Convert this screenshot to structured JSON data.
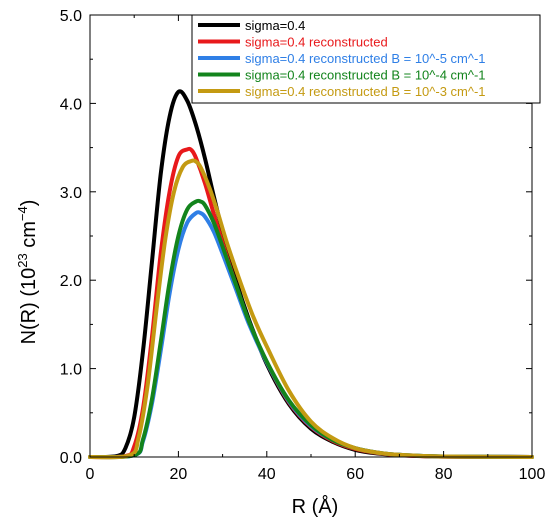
{
  "chart_data": {
    "type": "line",
    "xlabel": "R (Å)",
    "ylabel_main": "N(R) (10",
    "ylabel_exp1": "23",
    "ylabel_mid": " cm",
    "ylabel_exp2": "−4",
    "ylabel_end": ")",
    "xlim": [
      0,
      100
    ],
    "ylim": [
      0,
      5
    ],
    "x_ticks": [
      0,
      20,
      40,
      60,
      80,
      100
    ],
    "y_ticks": [
      0.0,
      1.0,
      2.0,
      3.0,
      4.0,
      5.0
    ],
    "x_tick_labels": [
      "0",
      "20",
      "40",
      "60",
      "80",
      "100"
    ],
    "y_tick_labels": [
      "0.0",
      "1.0",
      "2.0",
      "3.0",
      "4.0",
      "5.0"
    ],
    "grid": false,
    "legend_position": "top-right",
    "series": [
      {
        "name": "sigma=0.4",
        "color": "#000000",
        "x": [
          0,
          6,
          8,
          10,
          12,
          14,
          16,
          18,
          20,
          22,
          24,
          26,
          28,
          30,
          33,
          36,
          40,
          45,
          50,
          55,
          60,
          65,
          70,
          80,
          100
        ],
        "y": [
          0,
          0.01,
          0.1,
          0.45,
          1.2,
          2.2,
          3.2,
          3.85,
          4.13,
          4.03,
          3.75,
          3.38,
          2.95,
          2.55,
          2.0,
          1.55,
          1.05,
          0.6,
          0.32,
          0.17,
          0.08,
          0.04,
          0.02,
          0.005,
          0
        ]
      },
      {
        "name": "sigma=0.4 reconstructed",
        "color": "#e8191b",
        "x": [
          0,
          8,
          10,
          12,
          14,
          16,
          18,
          20,
          22,
          23,
          24,
          26,
          28,
          30,
          33,
          36,
          40,
          45,
          50,
          55,
          60,
          65,
          70,
          80,
          100
        ],
        "y": [
          0,
          0.01,
          0.12,
          0.55,
          1.35,
          2.3,
          3.0,
          3.4,
          3.48,
          3.47,
          3.38,
          3.1,
          2.75,
          2.42,
          1.95,
          1.52,
          1.07,
          0.62,
          0.34,
          0.18,
          0.09,
          0.045,
          0.02,
          0.005,
          0
        ]
      },
      {
        "name": "sigma=0.4 reconstructed B = 10^-5 cm^-1",
        "color": "#2f7fe6",
        "x": [
          0,
          10,
          12,
          14,
          16,
          18,
          20,
          22,
          24,
          25,
          26,
          28,
          30,
          33,
          36,
          40,
          45,
          50,
          55,
          60,
          65,
          70,
          80,
          100
        ],
        "y": [
          0,
          0.02,
          0.18,
          0.6,
          1.2,
          1.85,
          2.35,
          2.65,
          2.76,
          2.76,
          2.72,
          2.55,
          2.3,
          1.9,
          1.5,
          1.07,
          0.63,
          0.35,
          0.19,
          0.1,
          0.05,
          0.025,
          0.006,
          0
        ]
      },
      {
        "name": "sigma=0.4 reconstructed B = 10^-4 cm^-1",
        "color": "#13841c",
        "x": [
          0,
          10,
          12,
          14,
          16,
          18,
          20,
          22,
          24,
          25,
          26,
          28,
          30,
          33,
          36,
          40,
          45,
          50,
          55,
          60,
          65,
          70,
          80,
          100
        ],
        "y": [
          0,
          0.02,
          0.2,
          0.65,
          1.3,
          1.98,
          2.5,
          2.8,
          2.89,
          2.89,
          2.85,
          2.65,
          2.38,
          1.95,
          1.53,
          1.08,
          0.64,
          0.36,
          0.19,
          0.1,
          0.05,
          0.025,
          0.006,
          0
        ]
      },
      {
        "name": "sigma=0.4 reconstructed B = 10^-3 cm^-1",
        "color": "#c49a12",
        "x": [
          0,
          9,
          11,
          13,
          15,
          17,
          19,
          21,
          23,
          24,
          25,
          27,
          29,
          31,
          34,
          37,
          40,
          45,
          50,
          55,
          60,
          65,
          70,
          80,
          100
        ],
        "y": [
          0,
          0.02,
          0.22,
          0.8,
          1.65,
          2.45,
          3.0,
          3.28,
          3.35,
          3.34,
          3.28,
          3.05,
          2.75,
          2.42,
          1.98,
          1.58,
          1.25,
          0.75,
          0.4,
          0.21,
          0.1,
          0.05,
          0.025,
          0.006,
          0
        ]
      }
    ]
  }
}
